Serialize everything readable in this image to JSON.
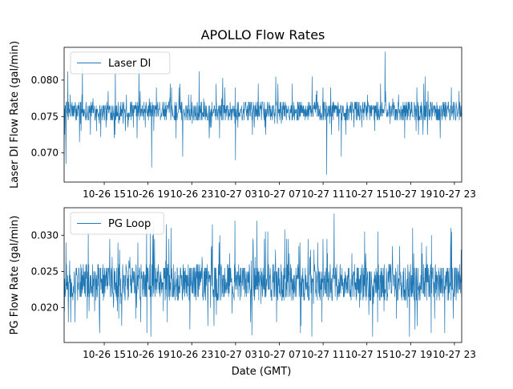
{
  "figure": {
    "title": "APOLLO Flow Rates",
    "xlabel": "Date (GMT)"
  },
  "colors": {
    "series": "#1f77b4",
    "axes": "#000000",
    "background": "#ffffff"
  },
  "chart_data": [
    {
      "type": "line",
      "title": "APOLLO Flow Rates",
      "ylabel": "Laser DI Flow Rate (gal/min)",
      "xlabel": "",
      "x_range": [
        "2023-10-26T11:20",
        "2023-10-27T23:40"
      ],
      "x_ticks": [
        "10-26 15",
        "10-26 19",
        "10-26 23",
        "10-27 03",
        "10-27 07",
        "10-27 11",
        "10-27 15",
        "10-27 19",
        "10-27 23"
      ],
      "ylim": [
        0.066,
        0.0845
      ],
      "y_ticks": [
        0.07,
        0.075,
        0.08
      ],
      "y_tick_labels": [
        "0.070",
        "0.075",
        "0.080"
      ],
      "legend": "upper-left",
      "grid": false,
      "series": [
        {
          "name": "Laser DI",
          "baseline": 0.0757,
          "band": [
            0.0745,
            0.077
          ],
          "resolution": 0.0005,
          "spikes": [
            {
              "x": "2023-10-26T11:30",
              "y": 0.0685
            },
            {
              "x": "2023-10-26T11:40",
              "y": 0.0812
            },
            {
              "x": "2023-10-26T13:00",
              "y": 0.0818
            },
            {
              "x": "2023-10-26T14:40",
              "y": 0.0722
            },
            {
              "x": "2023-10-26T16:00",
              "y": 0.0818
            },
            {
              "x": "2023-10-26T17:40",
              "y": 0.0735
            },
            {
              "x": "2023-10-26T18:10",
              "y": 0.0818
            },
            {
              "x": "2023-10-26T19:20",
              "y": 0.068
            },
            {
              "x": "2023-10-26T22:10",
              "y": 0.0695
            },
            {
              "x": "2023-10-26T23:40",
              "y": 0.0812
            },
            {
              "x": "2023-10-27T01:50",
              "y": 0.0803
            },
            {
              "x": "2023-10-27T03:00",
              "y": 0.069
            },
            {
              "x": "2023-10-27T06:40",
              "y": 0.0805
            },
            {
              "x": "2023-10-27T10:00",
              "y": 0.0805
            },
            {
              "x": "2023-10-27T11:20",
              "y": 0.067
            },
            {
              "x": "2023-10-27T12:40",
              "y": 0.0695
            },
            {
              "x": "2023-10-27T16:40",
              "y": 0.0839
            },
            {
              "x": "2023-10-27T20:20",
              "y": 0.0805
            }
          ]
        }
      ]
    },
    {
      "type": "line",
      "title": "",
      "ylabel": "PG Flow Rate (gal/min)",
      "xlabel": "Date (GMT)",
      "x_range": [
        "2023-10-26T11:20",
        "2023-10-27T23:40"
      ],
      "x_ticks": [
        "10-26 15",
        "10-26 19",
        "10-26 23",
        "10-27 03",
        "10-27 07",
        "10-27 11",
        "10-27 15",
        "10-27 19",
        "10-27 23"
      ],
      "ylim": [
        0.0152,
        0.0338
      ],
      "y_ticks": [
        0.02,
        0.025,
        0.03
      ],
      "y_tick_labels": [
        "0.020",
        "0.025",
        "0.030"
      ],
      "legend": "upper-left",
      "grid": false,
      "series": [
        {
          "name": "PG Loop",
          "baseline": 0.024,
          "band": [
            0.021,
            0.026
          ],
          "resolution": 0.0005,
          "spikes": [
            {
              "x": "2023-10-26T11:30",
              "y": 0.029
            },
            {
              "x": "2023-10-26T12:20",
              "y": 0.018
            },
            {
              "x": "2023-10-26T15:30",
              "y": 0.0295
            },
            {
              "x": "2023-10-26T18:20",
              "y": 0.018
            },
            {
              "x": "2023-10-27T01:30",
              "y": 0.029
            },
            {
              "x": "2023-10-27T02:40",
              "y": 0.0192
            },
            {
              "x": "2023-10-27T04:30",
              "y": 0.0162
            },
            {
              "x": "2023-10-27T07:30",
              "y": 0.0308
            },
            {
              "x": "2023-10-27T11:00",
              "y": 0.0295
            },
            {
              "x": "2023-10-27T12:00",
              "y": 0.033
            },
            {
              "x": "2023-10-27T16:00",
              "y": 0.0305
            },
            {
              "x": "2023-10-27T20:00",
              "y": 0.029
            },
            {
              "x": "2023-10-27T22:40",
              "y": 0.031
            }
          ]
        }
      ]
    }
  ]
}
